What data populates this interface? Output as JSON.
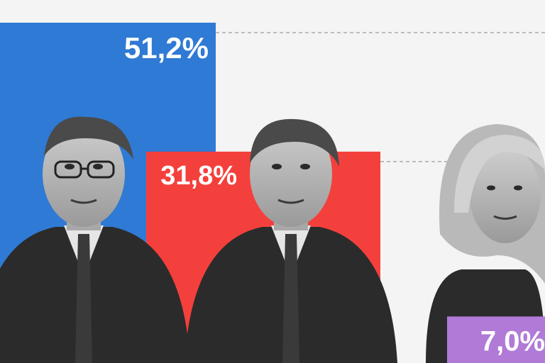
{
  "chart_data": {
    "type": "bar",
    "categories": [
      "",
      "",
      ""
    ],
    "values": [
      51.2,
      31.8,
      7.0
    ],
    "value_labels": [
      "51,2%",
      "31,8%",
      "7,0%"
    ],
    "bar_colors": [
      "#2f7ad4",
      "#f4403c",
      "#b07ad6"
    ],
    "title": "",
    "xlabel": "",
    "ylabel": "",
    "ylim": [
      0,
      55
    ],
    "grid": "dashed reference line at each bar's value",
    "legend": "none",
    "images": [
      "grayscale portrait behind bar 1",
      "grayscale portrait behind bar 2",
      "grayscale portrait behind bar 3"
    ]
  }
}
